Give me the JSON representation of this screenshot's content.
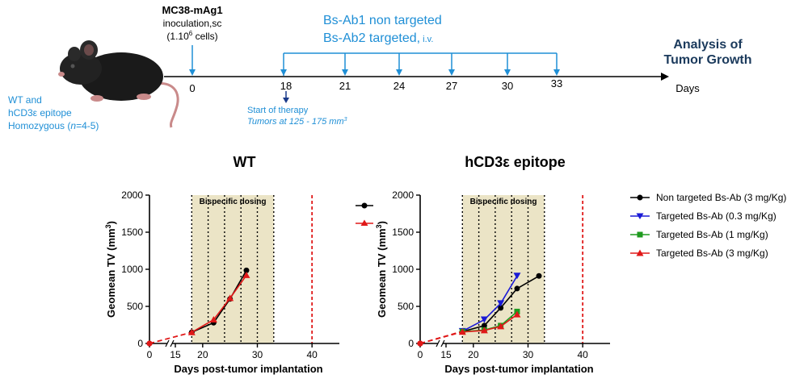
{
  "timeline": {
    "injection_title": "MC38-mAg1",
    "injection_line2": "inoculation,sc",
    "injection_line3_pre": "(1.10",
    "injection_line3_sup": "6",
    "injection_line3_post": " cells)",
    "dosing_line1": "Bs-Ab1 non targeted",
    "dosing_line2": "Bs-Ab2 targeted,",
    "dosing_route": " i.v.",
    "analysis_line1": "Analysis of",
    "analysis_line2": "Tumor Growth",
    "axis_unit": "Days",
    "ticks": [
      "0",
      "18",
      "21",
      "24",
      "27",
      "30",
      "33"
    ],
    "therapy_start": "Start of therapy",
    "therapy_tumor_pre": "Tumors at 125 - 175 mm",
    "therapy_tumor_sup": "3",
    "mouse_line1": "WT and",
    "mouse_line2": "hCD3ε epitope",
    "mouse_line3_pre": "Homozygous (",
    "mouse_line3_n": "n",
    "mouse_line3_post": "=4-5)",
    "colors": {
      "accent": "#1f8fd6",
      "title": "#1b3a5c"
    }
  },
  "legend": {
    "items": [
      {
        "label": "Non targeted Bs-Ab (3 mg/Kg)",
        "color": "#000000",
        "marker": "circle"
      },
      {
        "label": "Targeted Bs-Ab (0.3 mg/Kg)",
        "color": "#1a1ad6",
        "marker": "triangle-down"
      },
      {
        "label": "Targeted Bs-Ab (1 mg/Kg)",
        "color": "#1f9a1f",
        "marker": "square"
      },
      {
        "label": "Targeted Bs-Ab (3 mg/Kg)",
        "color": "#e01818",
        "marker": "triangle-up"
      }
    ]
  },
  "chart_data": [
    {
      "type": "line",
      "title": "WT",
      "xlabel": "Days post-tumor implantation",
      "ylabel": "Geomean TV (mm3)",
      "ylim": [
        0,
        2000
      ],
      "xlim": [
        0,
        45
      ],
      "x_ticks": [
        "0",
        "15",
        "20",
        "30",
        "40"
      ],
      "y_ticks": [
        "0",
        "500",
        "1000",
        "1500",
        "2000"
      ],
      "shaded_label": "Bispecific dosing",
      "shaded_range": [
        18,
        33
      ],
      "dosing_days": [
        18,
        21,
        24,
        27,
        30,
        33
      ],
      "cutoff_day": 40,
      "series": [
        {
          "color": "#000000",
          "marker": "circle",
          "points": [
            [
              0,
              0
            ],
            [
              18,
              150
            ],
            [
              22,
              280
            ],
            [
              25,
              600
            ],
            [
              28,
              985
            ]
          ]
        },
        {
          "color": "#e01818",
          "marker": "triangle-up",
          "points": [
            [
              0,
              0
            ],
            [
              18,
              150
            ],
            [
              22,
              320
            ],
            [
              25,
              610
            ],
            [
              28,
              920
            ]
          ]
        }
      ]
    },
    {
      "type": "line",
      "title": "hCD3ε epitope",
      "xlabel": "Days post-tumor implantation",
      "ylabel": "Geomean TV (mm3)",
      "ylim": [
        0,
        2000
      ],
      "xlim": [
        0,
        45
      ],
      "x_ticks": [
        "0",
        "15",
        "20",
        "30",
        "40"
      ],
      "y_ticks": [
        "0",
        "500",
        "1000",
        "1500",
        "2000"
      ],
      "shaded_label": "Bispecific dosing",
      "shaded_range": [
        18,
        33
      ],
      "dosing_days": [
        18,
        21,
        24,
        27,
        30,
        33
      ],
      "cutoff_day": 40,
      "series": [
        {
          "name": "Non targeted Bs-Ab (3 mg/Kg)",
          "color": "#000000",
          "marker": "circle",
          "points": [
            [
              0,
              0
            ],
            [
              18,
              160
            ],
            [
              22,
              240
            ],
            [
              25,
              480
            ],
            [
              28,
              740
            ],
            [
              32,
              910
            ]
          ]
        },
        {
          "name": "Targeted Bs-Ab (0.3 mg/Kg)",
          "color": "#1a1ad6",
          "marker": "triangle-down",
          "points": [
            [
              0,
              0
            ],
            [
              18,
              165
            ],
            [
              22,
              320
            ],
            [
              25,
              540
            ],
            [
              28,
              910
            ]
          ]
        },
        {
          "name": "Targeted Bs-Ab (1 mg/Kg)",
          "color": "#1f9a1f",
          "marker": "square",
          "points": [
            [
              0,
              0
            ],
            [
              18,
              160
            ],
            [
              22,
              180
            ],
            [
              25,
              240
            ],
            [
              28,
              430
            ]
          ]
        },
        {
          "name": "Targeted Bs-Ab (3 mg/Kg)",
          "color": "#e01818",
          "marker": "triangle-up",
          "points": [
            [
              0,
              0
            ],
            [
              18,
              155
            ],
            [
              22,
              175
            ],
            [
              25,
              230
            ],
            [
              28,
              390
            ]
          ]
        }
      ]
    }
  ]
}
